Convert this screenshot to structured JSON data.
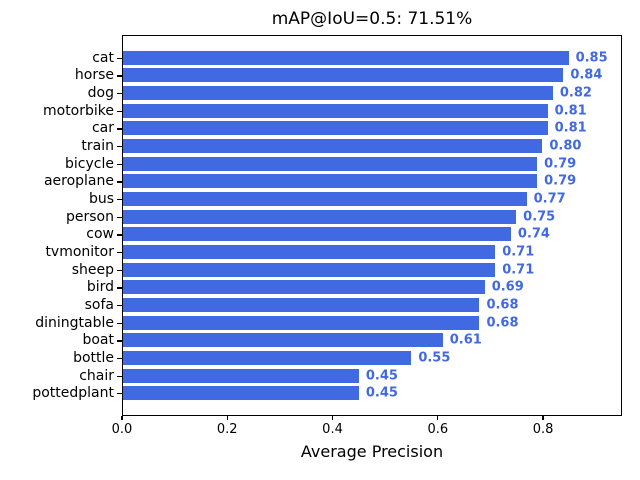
{
  "chart_data": {
    "type": "bar",
    "orientation": "horizontal",
    "title": "mAP@IoU=0.5: 71.51%",
    "xlabel": "Average Precision",
    "categories": [
      "cat",
      "horse",
      "dog",
      "motorbike",
      "car",
      "train",
      "bicycle",
      "aeroplane",
      "bus",
      "person",
      "cow",
      "tvmonitor",
      "sheep",
      "bird",
      "sofa",
      "diningtable",
      "boat",
      "bottle",
      "chair",
      "pottedplant"
    ],
    "values": [
      0.85,
      0.84,
      0.82,
      0.81,
      0.81,
      0.8,
      0.79,
      0.79,
      0.77,
      0.75,
      0.74,
      0.71,
      0.71,
      0.69,
      0.68,
      0.68,
      0.61,
      0.55,
      0.45,
      0.45
    ],
    "value_labels": [
      "0.85",
      "0.84",
      "0.82",
      "0.81",
      "0.81",
      "0.80",
      "0.79",
      "0.79",
      "0.77",
      "0.75",
      "0.74",
      "0.71",
      "0.71",
      "0.69",
      "0.68",
      "0.68",
      "0.61",
      "0.55",
      "0.45",
      "0.45"
    ],
    "xtick_labels": [
      "0.0",
      "0.2",
      "0.4",
      "0.6",
      "0.8"
    ],
    "xtick_values": [
      0.0,
      0.2,
      0.4,
      0.6,
      0.8
    ],
    "xlim": [
      0,
      0.95
    ],
    "grid": false,
    "legend": "none",
    "bar_color": "#4169e1",
    "value_label_color": "#4169e1",
    "axis_color": "#000000",
    "background_color": "#ffffff"
  }
}
